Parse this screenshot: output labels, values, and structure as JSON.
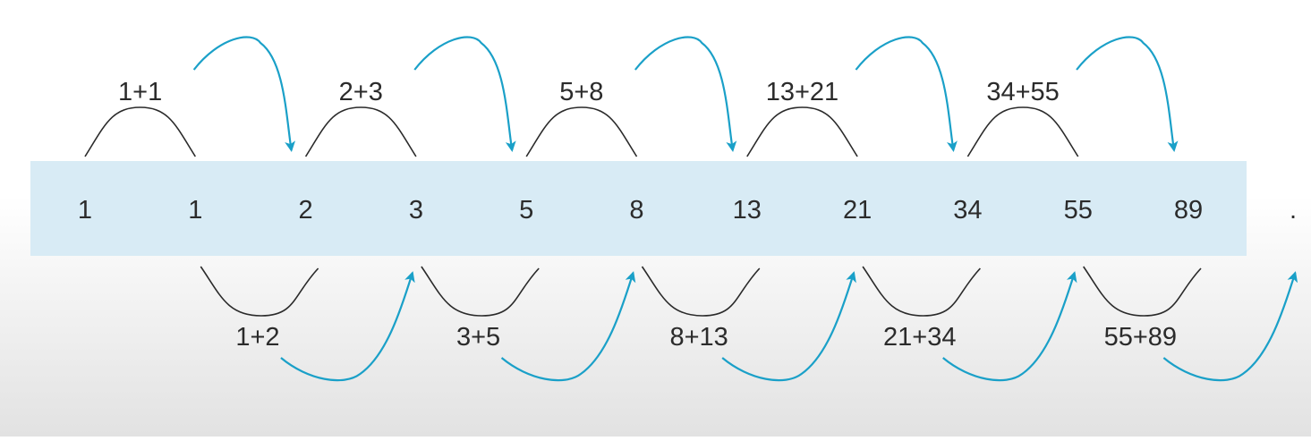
{
  "diagram": {
    "numbers": [
      "1",
      "1",
      "2",
      "3",
      "5",
      "8",
      "13",
      "21",
      "34",
      "55",
      "89"
    ],
    "continuation": ".",
    "top_sums": [
      "1+1",
      "2+3",
      "5+8",
      "13+21",
      "34+55"
    ],
    "bottom_sums": [
      "1+2",
      "3+5",
      "8+13",
      "21+34",
      "55+89"
    ],
    "colors": {
      "band": "#d8ebf5",
      "arrow": "#1aa0c8",
      "arc": "#2a2a2a",
      "text": "#2b2b2b"
    }
  }
}
